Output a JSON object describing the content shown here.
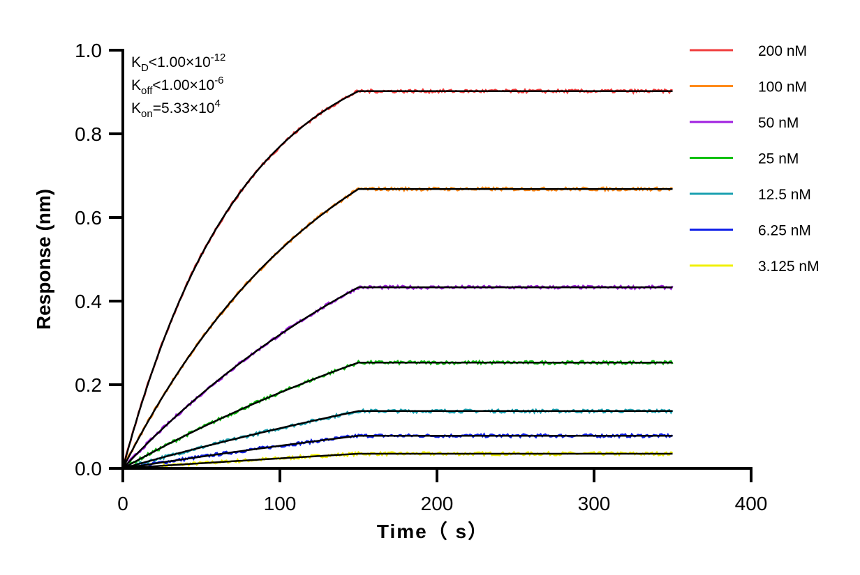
{
  "chart_data": {
    "type": "line",
    "title": "",
    "xlabel": "Time（ s）",
    "ylabel": "Response (nm)",
    "xlim": [
      0,
      400
    ],
    "ylim": [
      0,
      1.0
    ],
    "xticks": [
      "0",
      "100",
      "200",
      "300",
      "400"
    ],
    "yticks": [
      "0.0",
      "0.2",
      "0.4",
      "0.6",
      "0.8",
      "1.0"
    ],
    "association_end": 150,
    "dissociation_end": 350,
    "legend_position": "top-right",
    "annotations": {
      "kd": {
        "main": "K",
        "sub": "D",
        "rel": "<1.00×10",
        "sup": "-12"
      },
      "koff": {
        "main": "K",
        "sub": "off",
        "rel": "<1.00×10",
        "sup": "-6"
      },
      "kon": {
        "main": "K",
        "sub": "on",
        "rel": "=5.33×10",
        "sup": "4"
      }
    },
    "series": [
      {
        "name": "200 nM",
        "color": "#f03c3c",
        "plateau": 0.902,
        "kobs": 0.0135,
        "start": 0
      },
      {
        "name": "100 nM",
        "color": "#ff8a1a",
        "plateau": 0.668,
        "kobs": 0.0075,
        "start": 0
      },
      {
        "name": "50 nM",
        "color": "#a020e0",
        "plateau": 0.433,
        "kobs": 0.0045,
        "start": 0
      },
      {
        "name": "25 nM",
        "color": "#10c010",
        "plateau": 0.253,
        "kobs": 0.003,
        "start": 0
      },
      {
        "name": "12.5 nM",
        "color": "#1aa0b0",
        "plateau": 0.137,
        "kobs": 0.002,
        "start": 0
      },
      {
        "name": "6.25 nM",
        "color": "#1020e8",
        "plateau": 0.078,
        "kobs": 0.0015,
        "start": 10
      },
      {
        "name": "3.125 nM",
        "color": "#f0f000",
        "plateau": 0.035,
        "kobs": 0.001,
        "start": 25
      }
    ],
    "fit_color": "#000000"
  }
}
